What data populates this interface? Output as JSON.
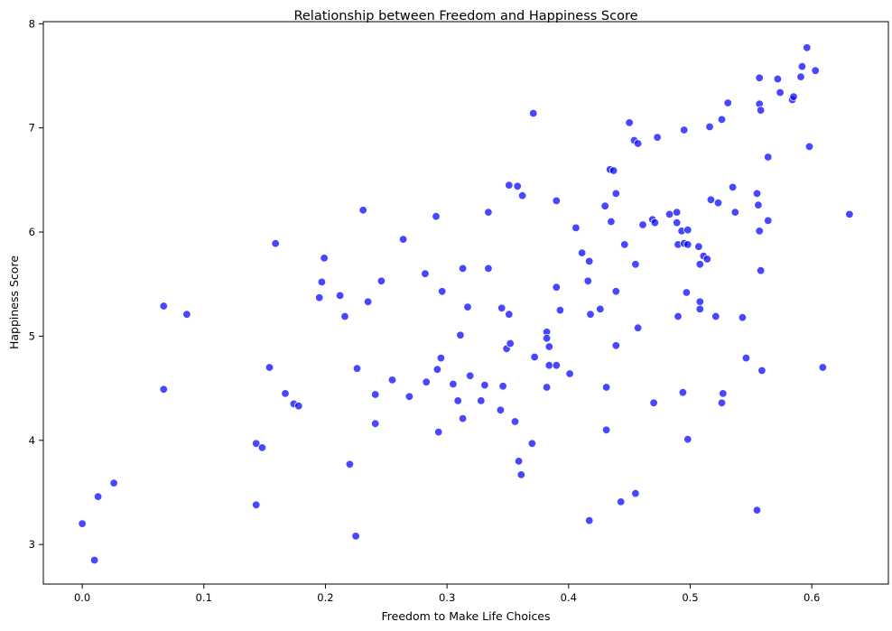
{
  "chart_data": {
    "type": "scatter",
    "title": "Relationship between Freedom and Happiness Score",
    "xlabel": "Freedom to Make Life Choices",
    "ylabel": "Happiness Score",
    "xlim": [
      -0.032,
      0.663
    ],
    "ylim": [
      2.62,
      8.02
    ],
    "xticks": [
      0.0,
      0.1,
      0.2,
      0.3,
      0.4,
      0.5,
      0.6
    ],
    "xtick_labels": [
      "0.0",
      "0.1",
      "0.2",
      "0.3",
      "0.4",
      "0.5",
      "0.6"
    ],
    "yticks": [
      3,
      4,
      5,
      6,
      7,
      8
    ],
    "ytick_labels": [
      "3",
      "4",
      "5",
      "6",
      "7",
      "8"
    ],
    "grid": false,
    "point_color": "#0000ff",
    "points": [
      [
        0.0,
        3.2
      ],
      [
        0.01,
        2.85
      ],
      [
        0.013,
        3.46
      ],
      [
        0.026,
        3.59
      ],
      [
        0.067,
        5.29
      ],
      [
        0.067,
        4.49
      ],
      [
        0.086,
        5.21
      ],
      [
        0.143,
        3.97
      ],
      [
        0.143,
        3.38
      ],
      [
        0.148,
        3.93
      ],
      [
        0.154,
        4.7
      ],
      [
        0.159,
        5.89
      ],
      [
        0.167,
        4.45
      ],
      [
        0.174,
        4.35
      ],
      [
        0.178,
        4.33
      ],
      [
        0.195,
        5.37
      ],
      [
        0.197,
        5.52
      ],
      [
        0.199,
        5.75
      ],
      [
        0.212,
        5.39
      ],
      [
        0.216,
        5.19
      ],
      [
        0.22,
        3.77
      ],
      [
        0.225,
        3.08
      ],
      [
        0.226,
        4.69
      ],
      [
        0.231,
        6.21
      ],
      [
        0.235,
        5.33
      ],
      [
        0.241,
        4.44
      ],
      [
        0.241,
        4.16
      ],
      [
        0.246,
        5.53
      ],
      [
        0.255,
        4.58
      ],
      [
        0.264,
        5.93
      ],
      [
        0.269,
        4.42
      ],
      [
        0.282,
        5.6
      ],
      [
        0.283,
        4.56
      ],
      [
        0.291,
        6.15
      ],
      [
        0.292,
        4.68
      ],
      [
        0.293,
        4.08
      ],
      [
        0.295,
        4.79
      ],
      [
        0.296,
        5.43
      ],
      [
        0.305,
        4.54
      ],
      [
        0.309,
        4.38
      ],
      [
        0.311,
        5.01
      ],
      [
        0.313,
        5.65
      ],
      [
        0.313,
        4.21
      ],
      [
        0.317,
        5.28
      ],
      [
        0.319,
        4.62
      ],
      [
        0.328,
        4.38
      ],
      [
        0.331,
        4.53
      ],
      [
        0.334,
        6.19
      ],
      [
        0.334,
        5.65
      ],
      [
        0.344,
        4.29
      ],
      [
        0.345,
        5.27
      ],
      [
        0.346,
        4.52
      ],
      [
        0.349,
        4.88
      ],
      [
        0.351,
        6.45
      ],
      [
        0.351,
        5.21
      ],
      [
        0.352,
        4.93
      ],
      [
        0.356,
        4.18
      ],
      [
        0.358,
        6.44
      ],
      [
        0.359,
        3.8
      ],
      [
        0.361,
        3.67
      ],
      [
        0.362,
        6.35
      ],
      [
        0.37,
        3.97
      ],
      [
        0.371,
        7.14
      ],
      [
        0.372,
        4.8
      ],
      [
        0.382,
        5.04
      ],
      [
        0.382,
        4.98
      ],
      [
        0.382,
        4.51
      ],
      [
        0.384,
        4.9
      ],
      [
        0.384,
        4.72
      ],
      [
        0.39,
        6.3
      ],
      [
        0.39,
        5.47
      ],
      [
        0.39,
        4.72
      ],
      [
        0.393,
        5.25
      ],
      [
        0.401,
        4.64
      ],
      [
        0.406,
        6.04
      ],
      [
        0.411,
        5.8
      ],
      [
        0.416,
        5.53
      ],
      [
        0.417,
        5.72
      ],
      [
        0.417,
        3.23
      ],
      [
        0.418,
        5.21
      ],
      [
        0.426,
        5.26
      ],
      [
        0.43,
        6.25
      ],
      [
        0.431,
        4.51
      ],
      [
        0.431,
        4.1
      ],
      [
        0.434,
        6.6
      ],
      [
        0.435,
        6.1
      ],
      [
        0.437,
        6.59
      ],
      [
        0.439,
        6.37
      ],
      [
        0.439,
        5.43
      ],
      [
        0.439,
        4.91
      ],
      [
        0.443,
        3.41
      ],
      [
        0.446,
        5.88
      ],
      [
        0.45,
        7.05
      ],
      [
        0.454,
        6.88
      ],
      [
        0.455,
        5.69
      ],
      [
        0.455,
        3.49
      ],
      [
        0.457,
        6.85
      ],
      [
        0.457,
        5.08
      ],
      [
        0.461,
        6.07
      ],
      [
        0.469,
        6.12
      ],
      [
        0.47,
        4.36
      ],
      [
        0.471,
        6.09
      ],
      [
        0.473,
        6.91
      ],
      [
        0.483,
        6.17
      ],
      [
        0.489,
        6.19
      ],
      [
        0.489,
        6.09
      ],
      [
        0.49,
        5.88
      ],
      [
        0.49,
        5.19
      ],
      [
        0.493,
        6.01
      ],
      [
        0.494,
        4.46
      ],
      [
        0.495,
        6.98
      ],
      [
        0.495,
        5.89
      ],
      [
        0.497,
        5.42
      ],
      [
        0.498,
        6.02
      ],
      [
        0.498,
        5.88
      ],
      [
        0.498,
        4.01
      ],
      [
        0.507,
        5.86
      ],
      [
        0.508,
        5.69
      ],
      [
        0.508,
        5.33
      ],
      [
        0.508,
        5.26
      ],
      [
        0.511,
        5.77
      ],
      [
        0.514,
        5.74
      ],
      [
        0.516,
        7.01
      ],
      [
        0.517,
        6.31
      ],
      [
        0.521,
        5.19
      ],
      [
        0.523,
        6.28
      ],
      [
        0.526,
        7.08
      ],
      [
        0.526,
        4.36
      ],
      [
        0.527,
        4.45
      ],
      [
        0.531,
        7.24
      ],
      [
        0.535,
        6.43
      ],
      [
        0.537,
        6.19
      ],
      [
        0.543,
        5.18
      ],
      [
        0.546,
        4.79
      ],
      [
        0.555,
        6.37
      ],
      [
        0.555,
        3.33
      ],
      [
        0.556,
        6.26
      ],
      [
        0.557,
        7.48
      ],
      [
        0.557,
        7.23
      ],
      [
        0.557,
        6.01
      ],
      [
        0.558,
        7.17
      ],
      [
        0.558,
        5.63
      ],
      [
        0.559,
        4.67
      ],
      [
        0.564,
        6.72
      ],
      [
        0.564,
        6.11
      ],
      [
        0.572,
        7.47
      ],
      [
        0.574,
        7.34
      ],
      [
        0.584,
        7.27
      ],
      [
        0.585,
        7.3
      ],
      [
        0.591,
        7.49
      ],
      [
        0.592,
        7.59
      ],
      [
        0.596,
        7.77
      ],
      [
        0.598,
        6.82
      ],
      [
        0.603,
        7.55
      ],
      [
        0.609,
        4.7
      ],
      [
        0.631,
        6.17
      ]
    ]
  }
}
